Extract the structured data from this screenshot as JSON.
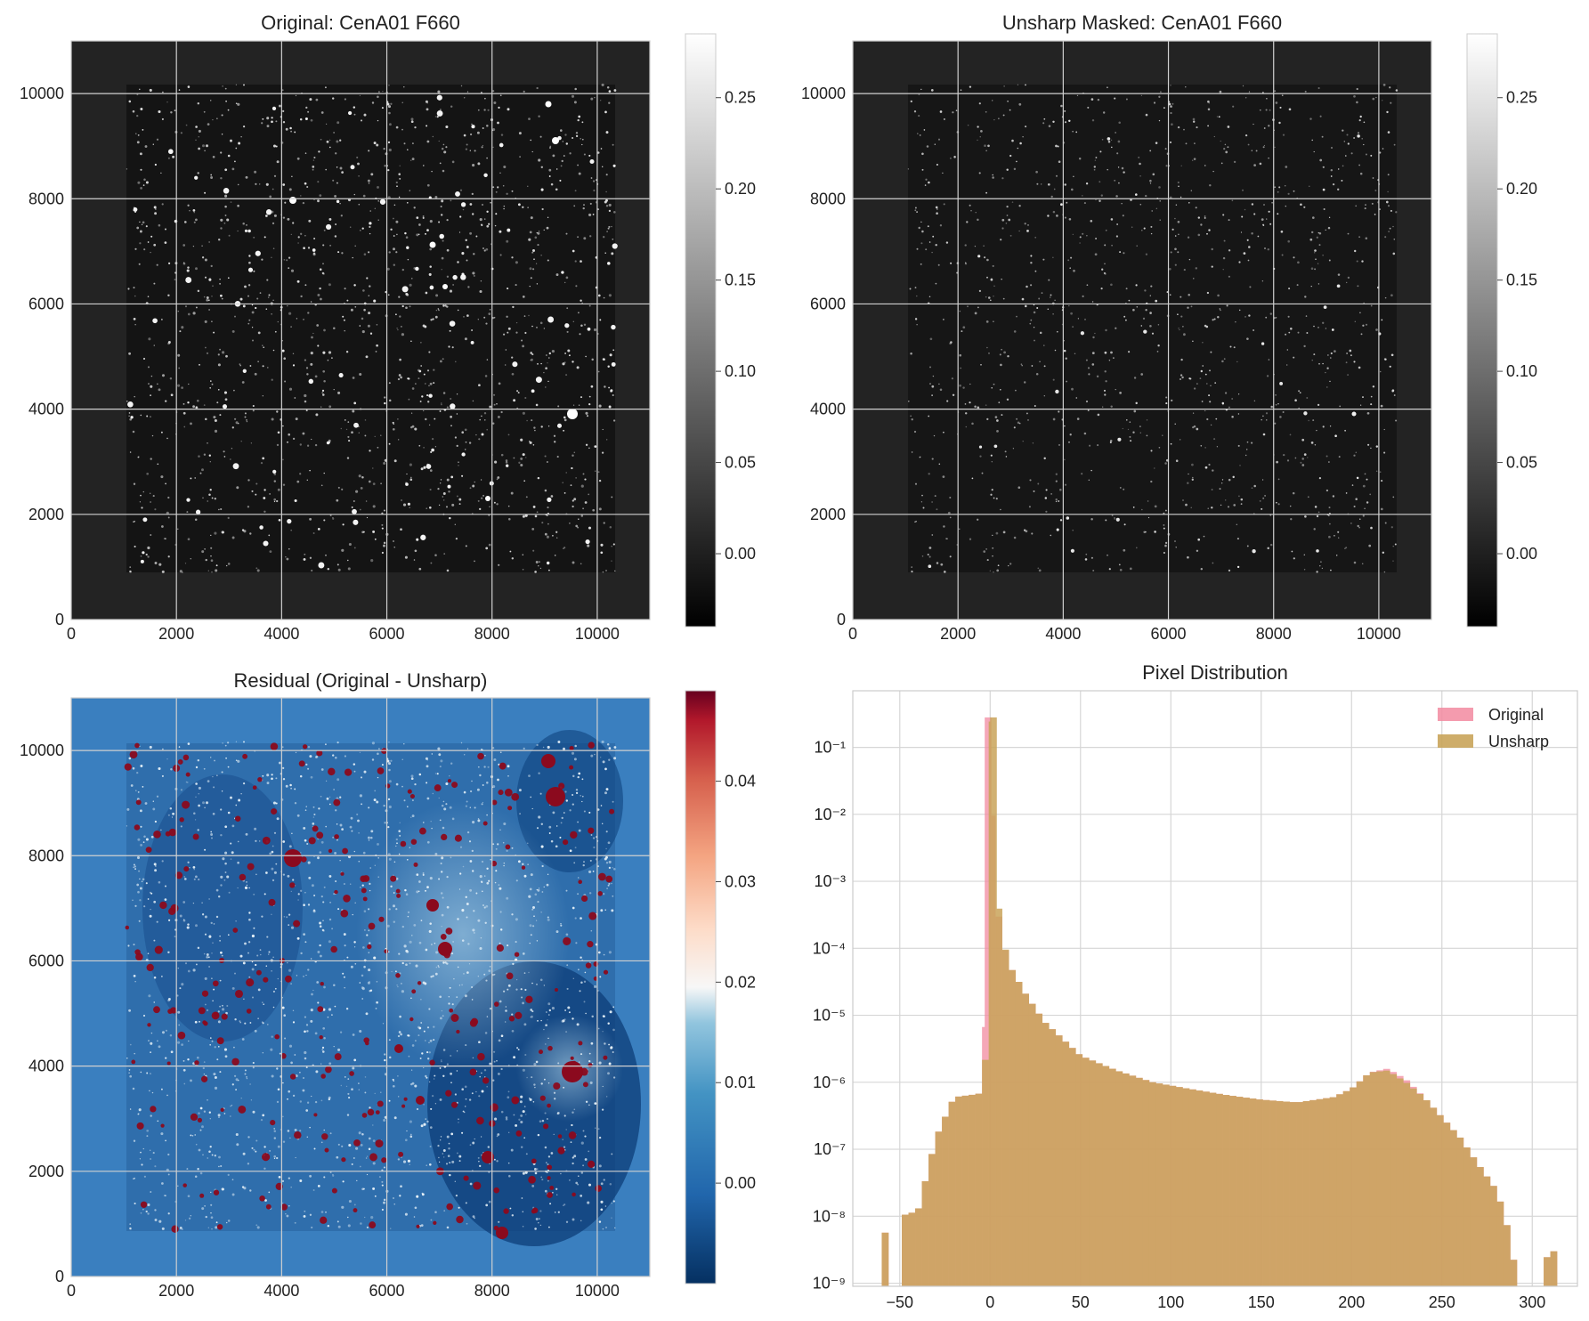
{
  "panels": {
    "original": {
      "title": "Original: CenA01 F660",
      "x_ticks": [
        "0",
        "2000",
        "4000",
        "6000",
        "8000",
        "10000"
      ],
      "y_ticks": [
        "0",
        "2000",
        "4000",
        "6000",
        "8000",
        "10000"
      ],
      "colorbar_ticks": [
        "0.00",
        "0.05",
        "0.10",
        "0.15",
        "0.20",
        "0.25"
      ],
      "colormap": "gray"
    },
    "unsharp": {
      "title": "Unsharp Masked: CenA01 F660",
      "x_ticks": [
        "0",
        "2000",
        "4000",
        "6000",
        "8000",
        "10000"
      ],
      "y_ticks": [
        "0",
        "2000",
        "4000",
        "6000",
        "8000",
        "10000"
      ],
      "colorbar_ticks": [
        "0.00",
        "0.05",
        "0.10",
        "0.15",
        "0.20",
        "0.25"
      ],
      "colormap": "gray"
    },
    "residual": {
      "title": "Residual (Original - Unsharp)",
      "x_ticks": [
        "0",
        "2000",
        "4000",
        "6000",
        "8000",
        "10000"
      ],
      "y_ticks": [
        "0",
        "2000",
        "4000",
        "6000",
        "8000",
        "10000"
      ],
      "colorbar_ticks": [
        "0.00",
        "0.01",
        "0.02",
        "0.03",
        "0.04"
      ],
      "colormap": "RdBu_r"
    }
  },
  "chart_data": [
    {
      "type": "heatmap",
      "title": "Original: CenA01 F660",
      "xlim": [
        0,
        11000
      ],
      "ylim": [
        0,
        11000
      ],
      "color_range": [
        -0.04,
        0.285
      ],
      "colormap": "gray",
      "grid": true
    },
    {
      "type": "heatmap",
      "title": "Unsharp Masked: CenA01 F660",
      "xlim": [
        0,
        11000
      ],
      "ylim": [
        0,
        11000
      ],
      "color_range": [
        -0.04,
        0.285
      ],
      "colormap": "gray",
      "grid": true
    },
    {
      "type": "heatmap",
      "title": "Residual (Original - Unsharp)",
      "xlim": [
        0,
        11000
      ],
      "ylim": [
        0,
        11000
      ],
      "color_range": [
        -0.01,
        0.049
      ],
      "colormap": "RdBu_r",
      "grid": true
    },
    {
      "type": "bar",
      "title": "Pixel Distribution",
      "xlim": [
        -76,
        325
      ],
      "ylim": [
        9e-10,
        0.7
      ],
      "yscale": "log",
      "x_ticks": [
        "−50",
        "0",
        "50",
        "100",
        "150",
        "200",
        "250",
        "300"
      ],
      "y_ticks": [
        "10⁻⁹",
        "10⁻⁸",
        "10⁻⁷",
        "10⁻⁶",
        "10⁻⁵",
        "10⁻⁴",
        "10⁻³",
        "10⁻²",
        "10⁻¹"
      ],
      "legend_position": "top-right",
      "grid": true,
      "series": [
        {
          "name": "Original",
          "color": "#f28aa0",
          "points": [
            [
              -60,
              5e-09
            ],
            [
              -50,
              1e-08
            ],
            [
              -40,
              1.2e-08
            ],
            [
              -30,
              1.5e-07
            ],
            [
              -20,
              6e-07
            ],
            [
              -10,
              6.5e-07
            ],
            [
              -3,
              7e-07
            ],
            [
              -1,
              0.28
            ],
            [
              2,
              0.002
            ],
            [
              5,
              0.00025
            ],
            [
              10,
              6e-05
            ],
            [
              20,
              2e-05
            ],
            [
              30,
              8e-06
            ],
            [
              50,
              2.5e-06
            ],
            [
              70,
              1.5e-06
            ],
            [
              90,
              1e-06
            ],
            [
              110,
              8e-07
            ],
            [
              130,
              6.5e-07
            ],
            [
              150,
              5.5e-07
            ],
            [
              170,
              5e-07
            ],
            [
              190,
              6e-07
            ],
            [
              200,
              8e-07
            ],
            [
              210,
              1.4e-06
            ],
            [
              220,
              1.6e-06
            ],
            [
              230,
              1.1e-06
            ],
            [
              240,
              6e-07
            ],
            [
              250,
              3e-07
            ],
            [
              260,
              1.5e-07
            ],
            [
              270,
              6e-08
            ],
            [
              280,
              2.5e-08
            ],
            [
              285,
              1e-08
            ],
            [
              290,
              2e-09
            ],
            [
              300,
              1e-09
            ],
            [
              310,
              3e-09
            ]
          ]
        },
        {
          "name": "Unsharp",
          "color": "#c9a45a",
          "points": [
            [
              -60,
              5e-09
            ],
            [
              -50,
              1e-08
            ],
            [
              -40,
              1.2e-08
            ],
            [
              -30,
              1.5e-07
            ],
            [
              -20,
              6e-07
            ],
            [
              -10,
              6.5e-07
            ],
            [
              -3,
              7e-07
            ],
            [
              1,
              0.28
            ],
            [
              3,
              0.001
            ],
            [
              6,
              0.0002
            ],
            [
              10,
              6e-05
            ],
            [
              20,
              2e-05
            ],
            [
              30,
              8e-06
            ],
            [
              50,
              2.5e-06
            ],
            [
              70,
              1.5e-06
            ],
            [
              90,
              1e-06
            ],
            [
              110,
              8e-07
            ],
            [
              130,
              6.5e-07
            ],
            [
              150,
              5.5e-07
            ],
            [
              170,
              5e-07
            ],
            [
              190,
              6e-07
            ],
            [
              200,
              8e-07
            ],
            [
              210,
              1.4e-06
            ],
            [
              220,
              1.5e-06
            ],
            [
              230,
              1e-06
            ],
            [
              240,
              6e-07
            ],
            [
              250,
              3e-07
            ],
            [
              260,
              1.5e-07
            ],
            [
              270,
              6e-08
            ],
            [
              280,
              2.5e-08
            ],
            [
              285,
              1e-08
            ],
            [
              290,
              2e-09
            ],
            [
              300,
              1e-09
            ],
            [
              310,
              3e-09
            ]
          ]
        }
      ]
    }
  ]
}
